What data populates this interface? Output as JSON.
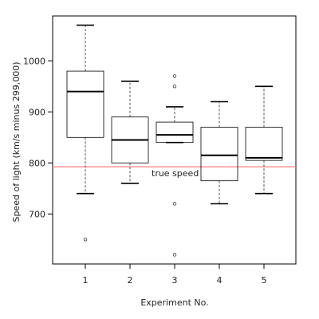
{
  "chart_data": {
    "type": "box",
    "title": "",
    "xlabel": "Experiment No.",
    "ylabel": "Speed of light (km/s minus 299,000)",
    "categories": [
      "1",
      "2",
      "3",
      "4",
      "5"
    ],
    "yticks": [
      700,
      800,
      900,
      1000
    ],
    "ylim": [
      602,
      1088
    ],
    "grid": false,
    "boxes": [
      {
        "name": "1",
        "whisker_low": 740,
        "q1": 850,
        "median": 940,
        "q3": 980,
        "whisker_high": 1070,
        "outliers": [
          650
        ]
      },
      {
        "name": "2",
        "whisker_low": 760,
        "q1": 800,
        "median": 845,
        "q3": 890,
        "whisker_high": 960,
        "outliers": []
      },
      {
        "name": "3",
        "whisker_low": 840,
        "q1": 840,
        "median": 855,
        "q3": 880,
        "whisker_high": 910,
        "outliers": [
          620,
          720,
          950,
          970
        ]
      },
      {
        "name": "4",
        "whisker_low": 720,
        "q1": 765,
        "median": 815,
        "q3": 870,
        "whisker_high": 920,
        "outliers": []
      },
      {
        "name": "5",
        "whisker_low": 740,
        "q1": 805,
        "median": 810,
        "q3": 870,
        "whisker_high": 950,
        "outliers": []
      }
    ],
    "reference_line": {
      "value": 792.458,
      "label": "true speed",
      "color": "#ff8080"
    },
    "colors": {
      "box": "#000000",
      "whisker": "#555555"
    }
  }
}
